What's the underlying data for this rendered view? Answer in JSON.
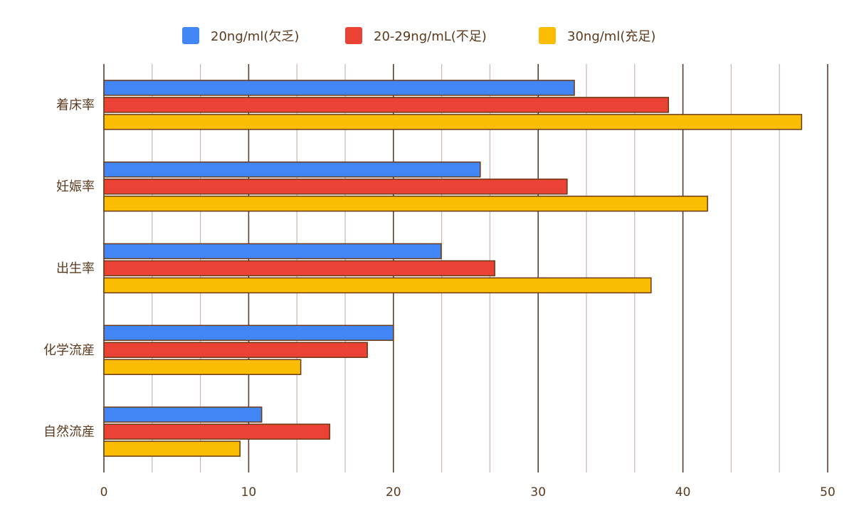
{
  "chart_data": {
    "type": "bar",
    "orientation": "horizontal",
    "categories": [
      "着床率",
      "妊娠率",
      "出生率",
      "化学流産",
      "自然流産"
    ],
    "series": [
      {
        "name": "20ng/ml(欠乏)",
        "color": "#4285f4",
        "values": [
          32.5,
          26.0,
          23.3,
          20.0,
          10.9
        ]
      },
      {
        "name": "20-29ng/mL(不足)",
        "color": "#ea4335",
        "values": [
          39.0,
          32.0,
          27.0,
          18.2,
          15.6
        ]
      },
      {
        "name": "30ng/ml(充足)",
        "color": "#fbbc04",
        "values": [
          48.2,
          41.7,
          37.8,
          13.6,
          9.4
        ]
      }
    ],
    "xlim": [
      0,
      50
    ],
    "xticks": [
      0,
      10,
      20,
      30,
      40,
      50
    ],
    "legend_position": "top",
    "grid": "vertical",
    "bar_outline_color": "#6b3a16",
    "grid_color_major": "#5c3d2e",
    "grid_color_minor": "#c9b6ad",
    "text_color": "#5b3a1e"
  }
}
